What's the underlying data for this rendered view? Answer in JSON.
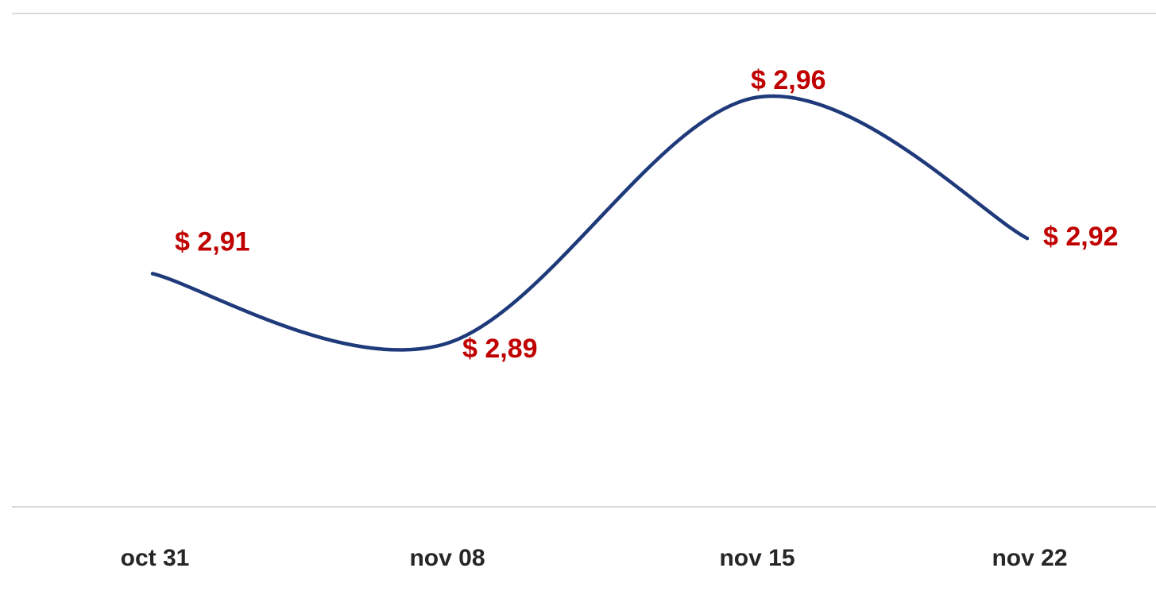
{
  "chart_data": {
    "type": "line",
    "categories": [
      "oct 31",
      "nov 08",
      "nov 15",
      "nov 22"
    ],
    "series": [
      {
        "values": [
          2.91,
          2.89,
          2.96,
          2.92
        ],
        "data_labels": [
          "$ 2,91",
          "$ 2,89",
          "$ 2,96",
          "$ 2,92"
        ]
      }
    ],
    "title": "",
    "xlabel": "",
    "ylabel": "",
    "ylim": [
      2.86,
      2.98
    ],
    "smooth": true,
    "grid": false,
    "legend": "none"
  },
  "colors": {
    "line": "#1f3a7a",
    "data_label": "#c00000",
    "grid": "#d9d9d9",
    "tick_label": "#262626"
  }
}
